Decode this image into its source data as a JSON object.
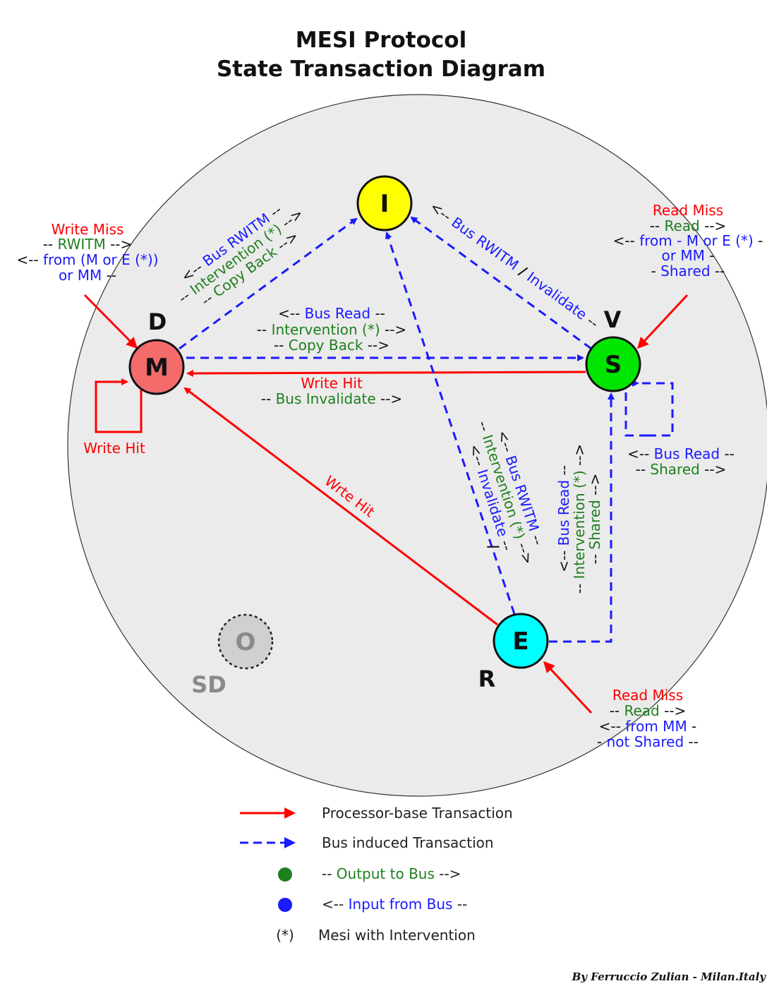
{
  "title": {
    "line1": "MESI Protocol",
    "line2": "State Transaction Diagram"
  },
  "colors": {
    "processor": "#ff0000",
    "bus": "#1a1aff",
    "output": "#1e7f1e",
    "input": "#1a1aff",
    "M": "#f36b6b",
    "I": "#ffff00",
    "S": "#00e600",
    "E": "#00ffff",
    "O": "#d0d0d0",
    "bg": "#ebebeb"
  },
  "states": {
    "M": {
      "letter": "M",
      "alt": "D"
    },
    "I": {
      "letter": "I"
    },
    "S": {
      "letter": "S",
      "alt": "V"
    },
    "E": {
      "letter": "E",
      "alt": "R"
    },
    "O": {
      "letter": "O",
      "alt": "SD"
    }
  },
  "labels": {
    "write_miss_m": {
      "title": "Write Miss",
      "l1": "RWITM",
      "l2": "from (M or E (*))",
      "l3": "or MM"
    },
    "m_to_i": {
      "l1": "Bus RWITM",
      "l2": "Intervention (*)",
      "l3": "Copy Back"
    },
    "m_to_s": {
      "l1": "Bus Read",
      "l2": "Intervention (*)",
      "l3": "Copy Back"
    },
    "s_to_m": {
      "l1": "Write Hit",
      "l2": "Bus Invalidate"
    },
    "m_self": "Write Hit",
    "s_to_i": {
      "a": "Bus RWITM",
      "sep": "/",
      "b": "Invalidate"
    },
    "read_miss_s": {
      "title": "Read Miss",
      "l1": "Read",
      "l2": "from - M or E (*)",
      "l3": "or MM",
      "l4": "Shared"
    },
    "s_self": {
      "l1": "Bus Read",
      "l2": "Shared"
    },
    "e_to_m": "Wrte Hit",
    "e_to_i": {
      "l1": "Bus RWITM",
      "l2": "Intervention (*)",
      "l3": "Invalidate",
      "sep": "/"
    },
    "e_to_s": {
      "l1": "Bus Read",
      "l2": "Intervention (*)",
      "l3": "Shared"
    },
    "read_miss_e": {
      "title": "Read Miss",
      "l1": "Read",
      "l2": "from MM",
      "l3": "not Shared"
    }
  },
  "legend": [
    {
      "kind": "solid-arrow",
      "text": "Processor-base Transaction"
    },
    {
      "kind": "dashed-arrow",
      "text": "Bus induced Transaction"
    },
    {
      "kind": "green-dot",
      "text": "Output to Bus"
    },
    {
      "kind": "blue-dot",
      "text": "Input from Bus"
    },
    {
      "kind": "asterisk",
      "symbol": "(*)",
      "text": "Mesi with Intervention"
    }
  ],
  "credit": "By Ferruccio Zulian - Milan.Italy"
}
